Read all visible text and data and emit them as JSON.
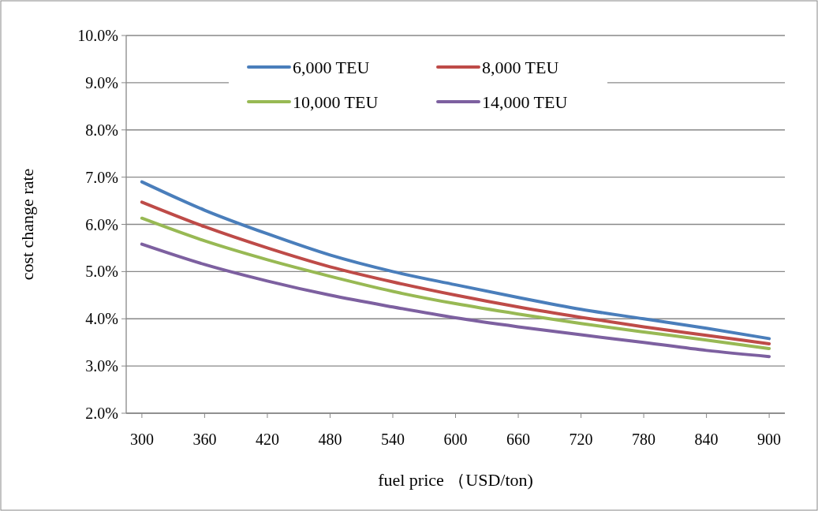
{
  "chart_data": {
    "type": "line",
    "xlabel": "fuel price （USD/ton)",
    "ylabel": "cost change rate",
    "x": [
      300,
      360,
      420,
      480,
      540,
      600,
      660,
      720,
      780,
      840,
      900
    ],
    "xlim": [
      285,
      915
    ],
    "xticks": [
      300,
      360,
      420,
      480,
      540,
      600,
      660,
      720,
      780,
      840,
      900
    ],
    "ylim": [
      2,
      10
    ],
    "yticks": [
      {
        "value": 2,
        "label": "2.0%"
      },
      {
        "value": 3,
        "label": "3.0%"
      },
      {
        "value": 4,
        "label": "4.0%"
      },
      {
        "value": 5,
        "label": "5.0%"
      },
      {
        "value": 6,
        "label": "6.0%"
      },
      {
        "value": 7,
        "label": "7.0%"
      },
      {
        "value": 8,
        "label": "8.0%"
      },
      {
        "value": 9,
        "label": "9.0%"
      },
      {
        "value": 10,
        "label": "10.0%"
      }
    ],
    "grid": "y",
    "legend": "top",
    "marker": "none",
    "series": [
      {
        "name": "6,000 TEU",
        "color": "#4a7ebb",
        "values": [
          6.9,
          6.3,
          5.8,
          5.35,
          5.0,
          4.72,
          4.45,
          4.2,
          4.0,
          3.8,
          3.58
        ]
      },
      {
        "name": "8,000 TEU",
        "color": "#be4b48",
        "values": [
          6.47,
          5.95,
          5.5,
          5.1,
          4.78,
          4.5,
          4.25,
          4.03,
          3.83,
          3.65,
          3.47
        ]
      },
      {
        "name": "10,000 TEU",
        "color": "#98b954",
        "values": [
          6.13,
          5.65,
          5.25,
          4.9,
          4.58,
          4.32,
          4.1,
          3.9,
          3.72,
          3.55,
          3.37
        ]
      },
      {
        "name": "14,000 TEU",
        "color": "#7d60a0",
        "values": [
          5.58,
          5.15,
          4.8,
          4.5,
          4.25,
          4.02,
          3.83,
          3.66,
          3.5,
          3.33,
          3.2
        ]
      }
    ]
  }
}
